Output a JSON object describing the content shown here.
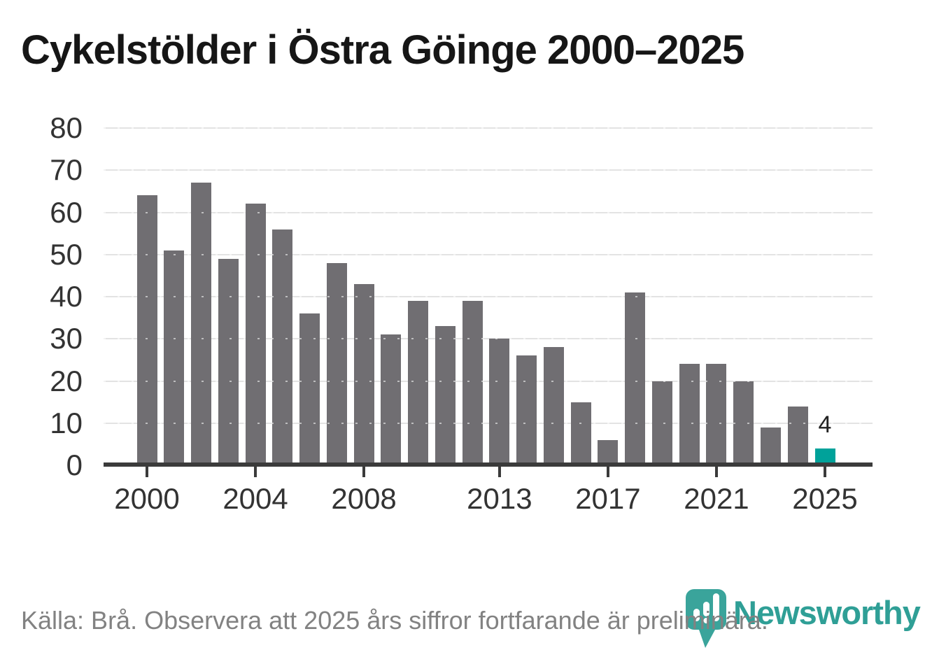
{
  "header": {
    "title": "Cykelstölder i Östra Göinge 2000–2025"
  },
  "chart_data": {
    "type": "bar",
    "title": "Cykelstölder i Östra Göinge 2000–2025",
    "x": [
      2000,
      2001,
      2002,
      2003,
      2004,
      2005,
      2006,
      2007,
      2008,
      2009,
      2010,
      2011,
      2012,
      2013,
      2014,
      2015,
      2016,
      2017,
      2018,
      2019,
      2020,
      2021,
      2022,
      2023,
      2024,
      2025
    ],
    "values": [
      64,
      51,
      67,
      49,
      62,
      56,
      36,
      48,
      43,
      31,
      39,
      33,
      39,
      30,
      26,
      28,
      15,
      6,
      41,
      20,
      24,
      24,
      20,
      9,
      14,
      4
    ],
    "ylim": [
      0,
      80
    ],
    "yticks": [
      0,
      10,
      20,
      30,
      40,
      50,
      60,
      70,
      80
    ],
    "xticks": [
      2000,
      2004,
      2008,
      2013,
      2017,
      2021,
      2025
    ],
    "grid": "horizontal",
    "legend": "none",
    "highlight_year": 2025,
    "data_label": {
      "year": 2025,
      "text": "4"
    },
    "colors": {
      "bar": "#706E72",
      "highlight": "#00A29A",
      "grid": "#E3E3E3",
      "axis": "#3B3B3B",
      "tick_text": "#333333",
      "title_text": "#161616",
      "note_text": "#828282",
      "logo_teal": "#2F9F96"
    }
  },
  "footer": {
    "source_note": "Källa: Brå. Observera att 2025 års siffror fortfarande är preliminära.",
    "logo_text": "Newsworthy"
  }
}
